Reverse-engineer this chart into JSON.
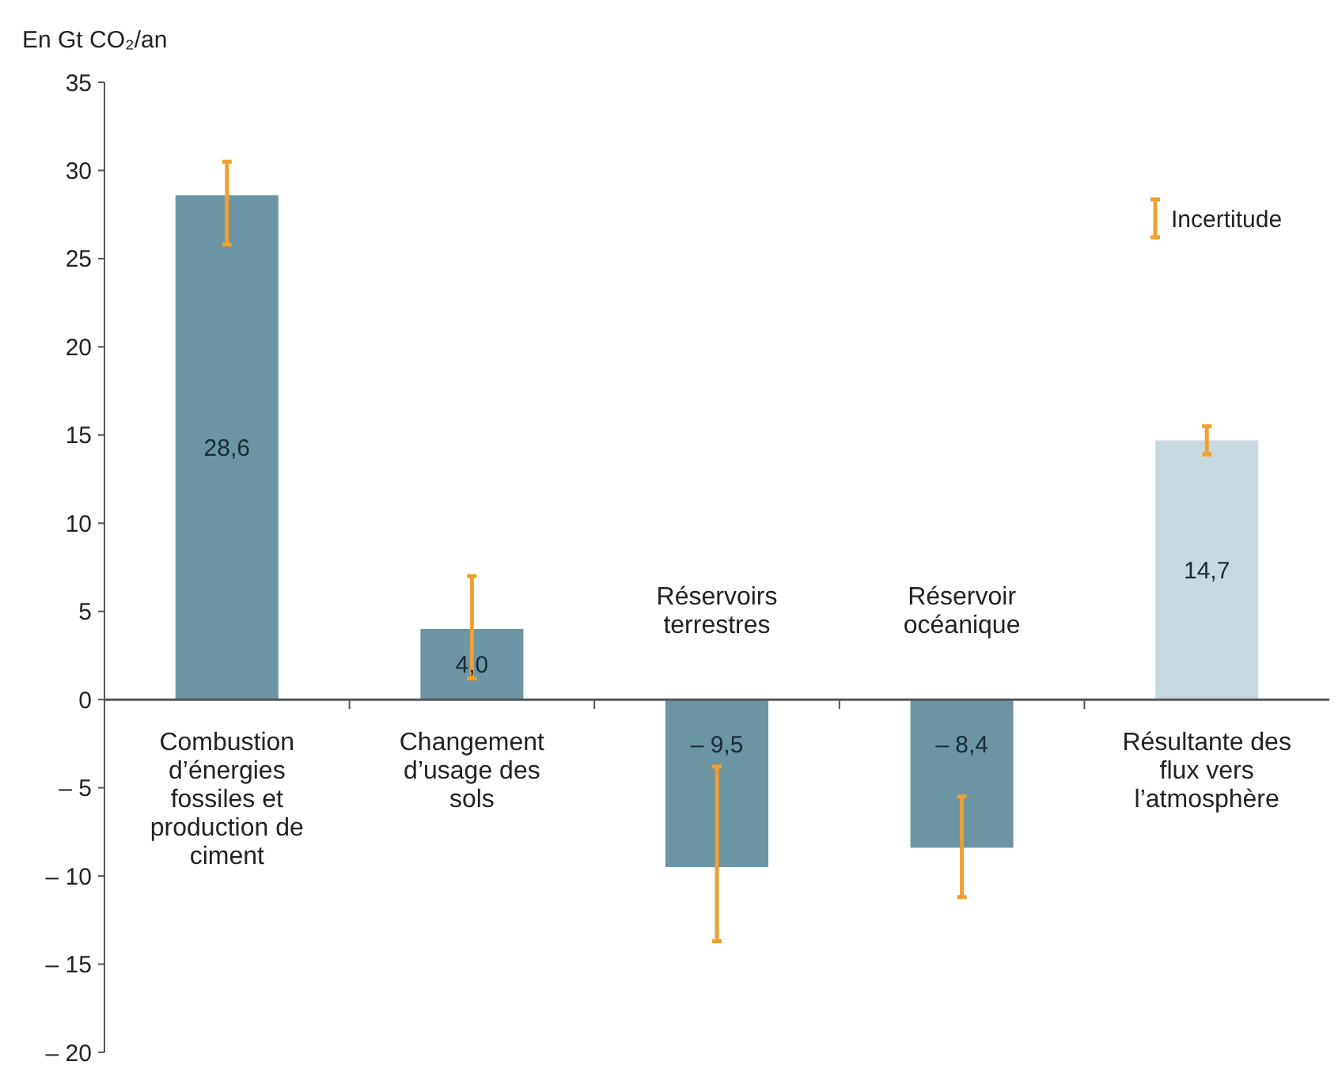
{
  "chart_data": {
    "type": "bar",
    "ylabel": "En Gt CO₂/an",
    "categories": [
      "Combustion d’énergies fossiles et production de ciment",
      "Changement d’usage des sols",
      "Réservoirs terrestres",
      "Réservoir océanique",
      "Résultante des flux vers l’atmosphère"
    ],
    "values": [
      28.6,
      4.0,
      -9.5,
      -8.4,
      14.7
    ],
    "colors": [
      "#6b95a3",
      "#6b95a3",
      "#6b95a3",
      "#6b95a3",
      "#c9d9e0"
    ],
    "value_labels": [
      "28,6",
      "4,0",
      "– 9,5",
      "– 8,4",
      "14,7"
    ],
    "errors": [
      [
        25.8,
        30.5
      ],
      [
        1.2,
        7.0
      ],
      [
        -13.7,
        -3.8
      ],
      [
        -11.2,
        -5.5
      ],
      [
        13.9,
        15.5
      ]
    ],
    "ylim": [
      -20,
      35
    ],
    "yticks": [
      {
        "value": -20,
        "label": "– 20"
      },
      {
        "value": -15,
        "label": "– 15"
      },
      {
        "value": -10,
        "label": "– 10"
      },
      {
        "value": -5,
        "label": "– 5"
      },
      0,
      5,
      10,
      15,
      20,
      25,
      30,
      35
    ],
    "annotations": [
      "Incertitude"
    ]
  }
}
